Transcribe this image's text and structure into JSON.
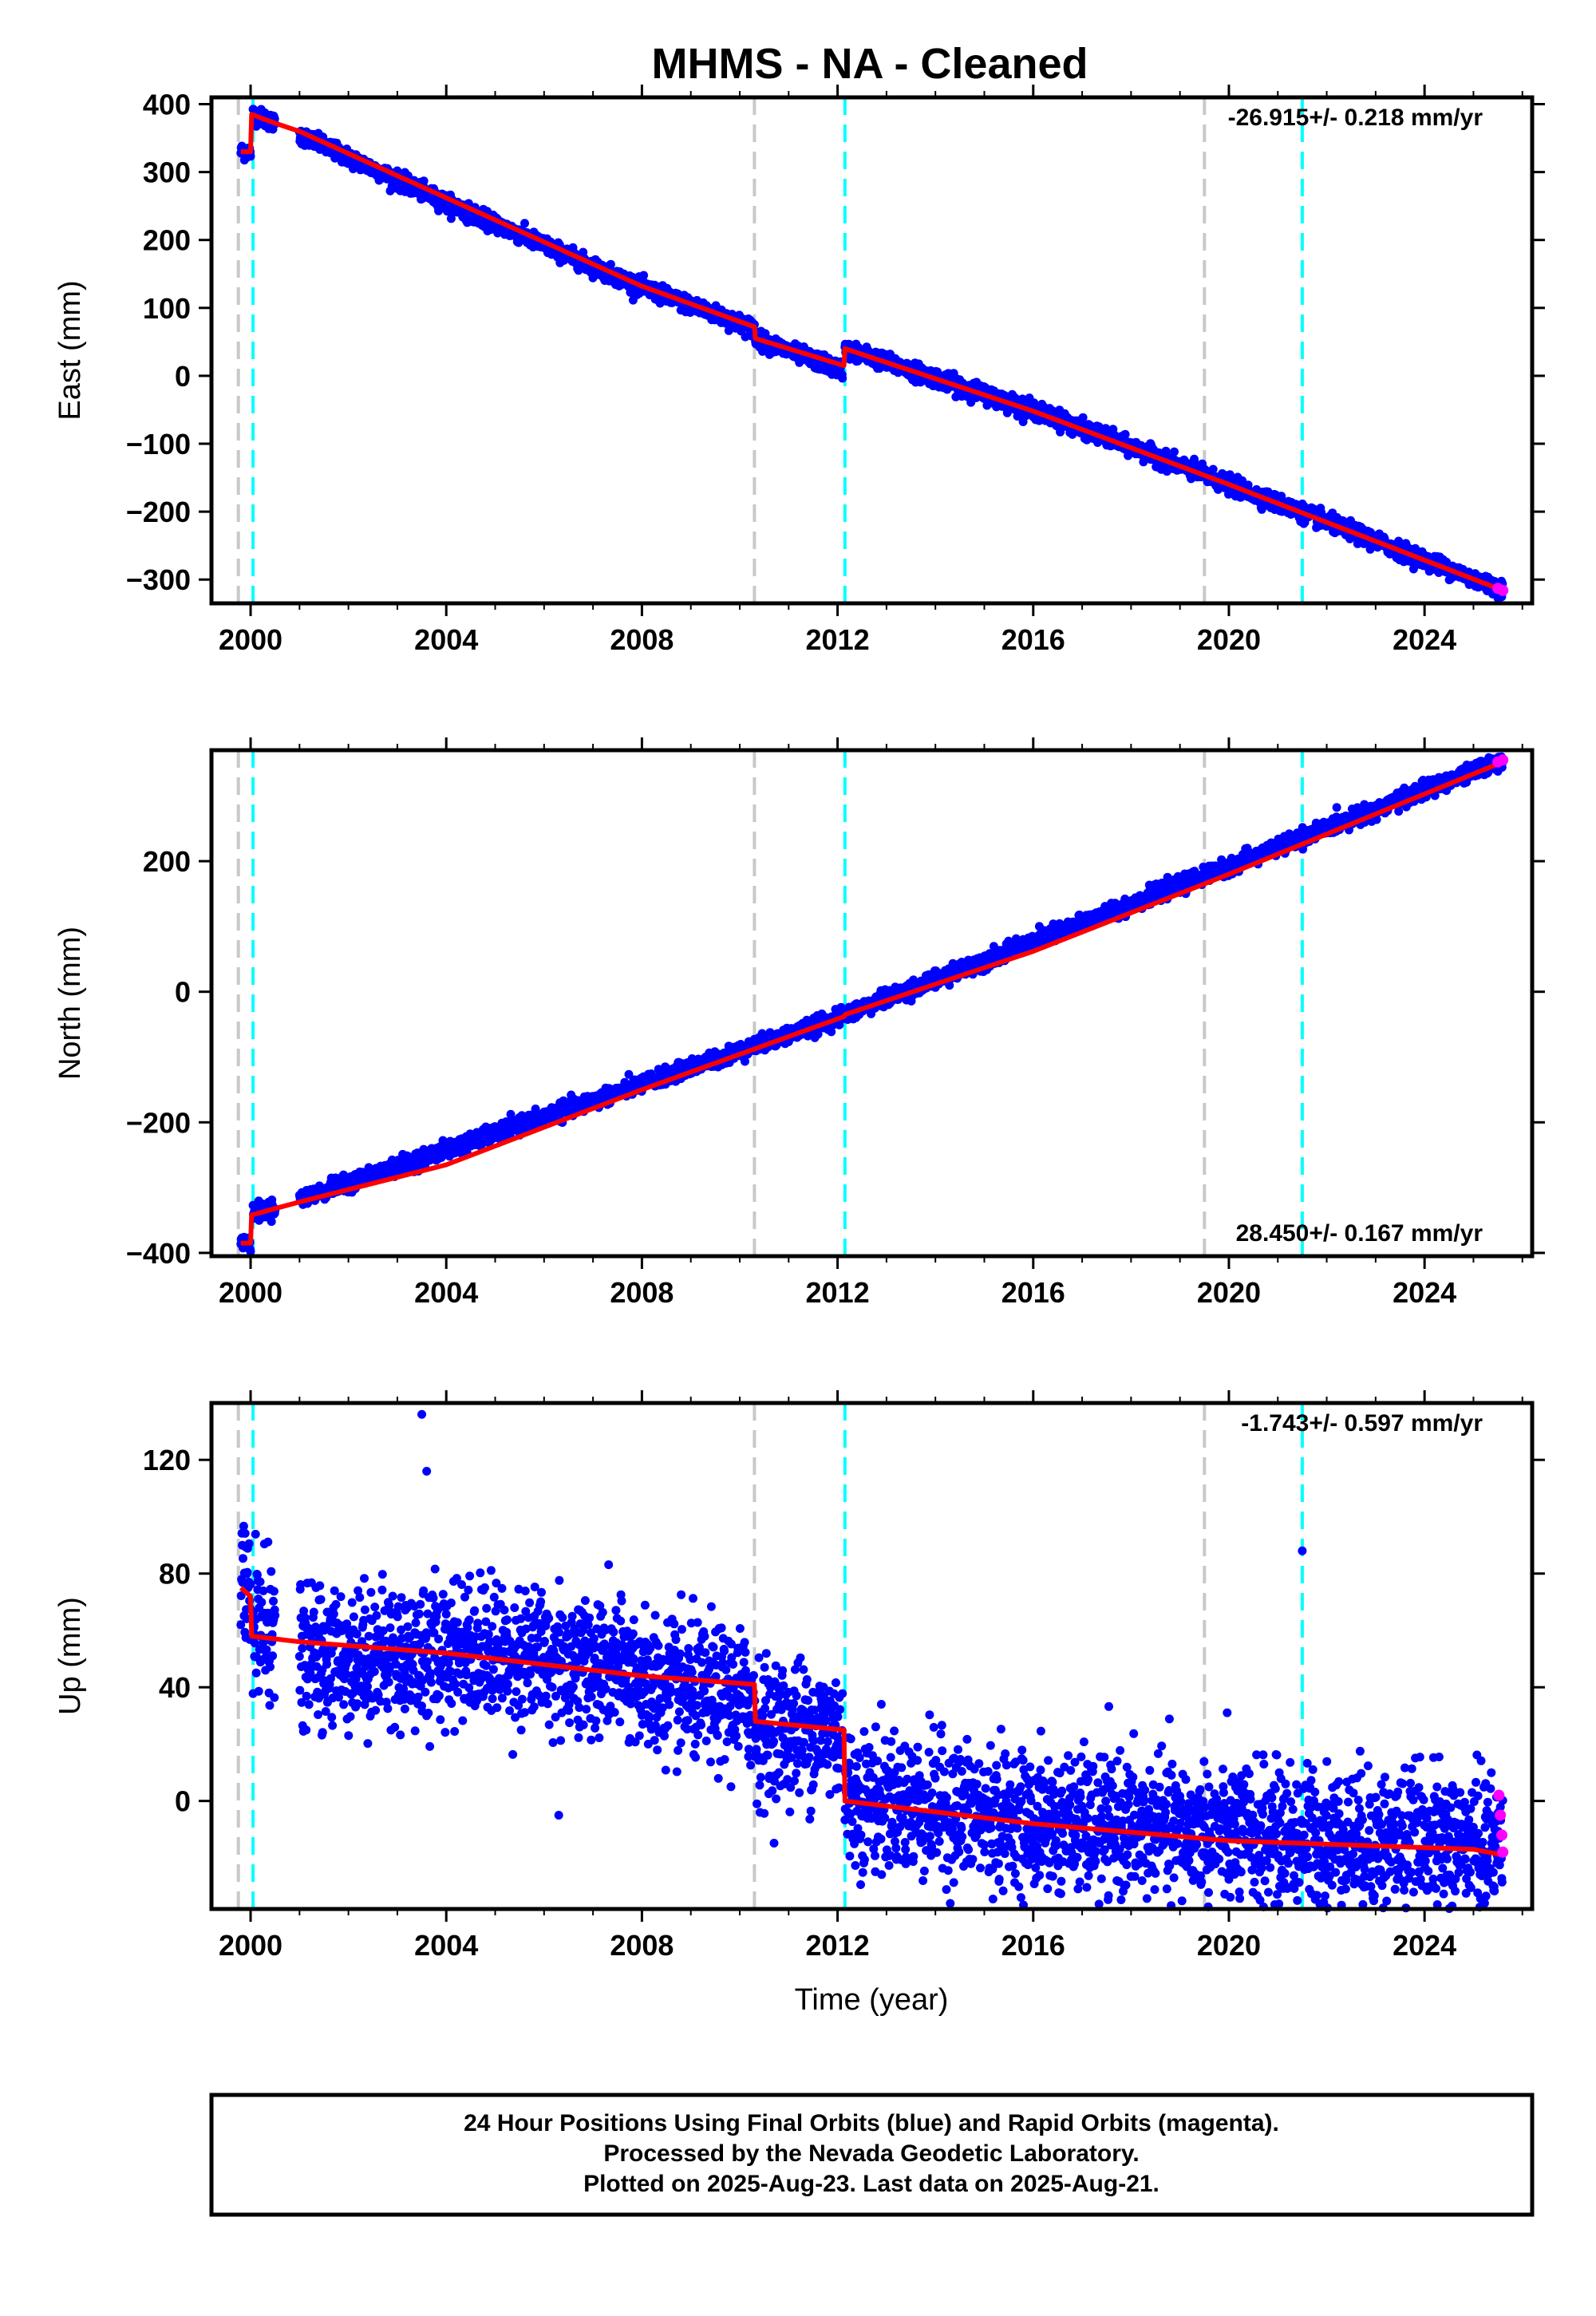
{
  "title": "MHMS  - NA - Cleaned",
  "xlabel": "Time (year)",
  "colors": {
    "final_points": "#0000ff",
    "rapid_points": "#ff00ff",
    "model": "#ff0000",
    "antenna_change": "#c8c8c8",
    "earthquake": "#00ffff",
    "frame": "#000000"
  },
  "footer": {
    "line1": "24 Hour Positions Using Final Orbits (blue) and Rapid Orbits (magenta).",
    "line2": "Processed by the Nevada Geodetic Laboratory.",
    "line3": "Plotted on 2025-Aug-23. Last data on 2025-Aug-21."
  },
  "chart_data": [
    {
      "type": "scatter",
      "panel": "east",
      "ylabel": "East (mm)",
      "rate_label": "-26.915+/- 0.218 mm/yr",
      "rate_position": "top-right",
      "xlim": [
        1999.2,
        2026.2
      ],
      "ylim": [
        -335,
        410
      ],
      "xticks": [
        2000,
        2004,
        2008,
        2012,
        2016,
        2020,
        2024
      ],
      "yticks": [
        -300,
        -200,
        -100,
        0,
        100,
        200,
        300,
        400
      ],
      "yticklabels": [
        "−300",
        "−200",
        "−100",
        "0",
        "100",
        "200",
        "300",
        "400"
      ],
      "vlines_gray": [
        1999.75,
        2010.3,
        2019.5
      ],
      "vlines_cyan": [
        2000.05,
        2012.15,
        2021.5
      ],
      "noise_mm": 6,
      "data_segments": [
        {
          "x": [
            1999.8,
            2000.0
          ],
          "y": [
            330,
            330
          ]
        },
        {
          "x": [
            2000.05,
            2000.5
          ],
          "y": [
            385,
            372
          ]
        },
        {
          "x": [
            2001.0,
            2004.0
          ],
          "y": [
            355,
            255
          ]
        },
        {
          "x": [
            2004.0,
            2008.0
          ],
          "y": [
            255,
            130
          ]
        },
        {
          "x": [
            2008.0,
            2010.3
          ],
          "y": [
            130,
            70
          ]
        },
        {
          "x": [
            2010.3,
            2012.1
          ],
          "y": [
            55,
            8
          ]
        },
        {
          "x": [
            2012.15,
            2016.0
          ],
          "y": [
            40,
            -50
          ]
        },
        {
          "x": [
            2016.0,
            2020.0
          ],
          "y": [
            -50,
            -160
          ]
        },
        {
          "x": [
            2020.0,
            2025.6
          ],
          "y": [
            -160,
            -315
          ]
        }
      ],
      "model_line": {
        "x": [
          1999.8,
          2000.0,
          2000.02,
          2000.5,
          2001.0,
          2004.0,
          2008.0,
          2010.3,
          2010.32,
          2012.13,
          2012.15,
          2016.0,
          2020.0,
          2025.6
        ],
        "y": [
          330,
          330,
          385,
          372,
          360,
          262,
          132,
          72,
          55,
          15,
          40,
          -52,
          -160,
          -316
        ]
      },
      "rapid_points": {
        "x": [
          2025.5,
          2025.6
        ],
        "y": [
          -313,
          -316
        ]
      }
    },
    {
      "type": "scatter",
      "panel": "north",
      "ylabel": "North (mm)",
      "rate_label": "28.450+/- 0.167 mm/yr",
      "rate_position": "bottom-right",
      "xlim": [
        1999.2,
        2026.2
      ],
      "ylim": [
        -405,
        370
      ],
      "xticks": [
        2000,
        2004,
        2008,
        2012,
        2016,
        2020,
        2024
      ],
      "yticks": [
        -400,
        -200,
        0,
        200
      ],
      "yticklabels": [
        "−400",
        "−200",
        "0",
        "200"
      ],
      "vlines_gray": [
        1999.75,
        2010.3,
        2019.5
      ],
      "vlines_cyan": [
        2000.05,
        2012.15,
        2021.5
      ],
      "noise_mm": 6,
      "data_segments": [
        {
          "x": [
            1999.8,
            2000.0
          ],
          "y": [
            -385,
            -385
          ]
        },
        {
          "x": [
            2000.05,
            2000.5
          ],
          "y": [
            -340,
            -330
          ]
        },
        {
          "x": [
            2001.0,
            2012.1
          ],
          "y": [
            -318,
            -38
          ]
        },
        {
          "x": [
            2012.15,
            2025.6
          ],
          "y": [
            -35,
            355
          ]
        }
      ],
      "model_line": {
        "x": [
          1999.8,
          2000.0,
          2000.02,
          2000.5,
          2001.0,
          2004.0,
          2008.0,
          2012.13,
          2012.15,
          2016.0,
          2020.0,
          2025.6
        ],
        "y": [
          -385,
          -385,
          -342,
          -332,
          -322,
          -265,
          -150,
          -38,
          -35,
          62,
          180,
          352
        ]
      },
      "rapid_points": {
        "x": [
          2025.5,
          2025.6
        ],
        "y": [
          352,
          355
        ]
      }
    },
    {
      "type": "scatter",
      "panel": "up",
      "ylabel": "Up (mm)",
      "rate_label": "-1.743+/- 0.597 mm/yr",
      "rate_position": "top-right",
      "xlim": [
        1999.2,
        2026.2
      ],
      "ylim": [
        -38,
        140
      ],
      "xticks": [
        2000,
        2004,
        2008,
        2012,
        2016,
        2020,
        2024
      ],
      "yticks": [
        0,
        40,
        80,
        120
      ],
      "yticklabels": [
        "0",
        "40",
        "80",
        "120"
      ],
      "vlines_gray": [
        1999.75,
        2010.3,
        2019.5
      ],
      "vlines_cyan": [
        2000.05,
        2012.15,
        2021.5
      ],
      "noise_mm": 12,
      "data_segments": [
        {
          "x": [
            1999.8,
            2000.0
          ],
          "y": [
            75,
            72
          ]
        },
        {
          "x": [
            2000.05,
            2000.5
          ],
          "y": [
            65,
            58
          ]
        },
        {
          "x": [
            2001.0,
            2004.0
          ],
          "y": [
            50,
            52
          ]
        },
        {
          "x": [
            2004.0,
            2008.0
          ],
          "y": [
            55,
            45
          ]
        },
        {
          "x": [
            2008.0,
            2010.3
          ],
          "y": [
            40,
            35
          ]
        },
        {
          "x": [
            2010.3,
            2012.1
          ],
          "y": [
            25,
            25
          ]
        },
        {
          "x": [
            2012.15,
            2016.0
          ],
          "y": [
            2,
            -8
          ]
        },
        {
          "x": [
            2016.0,
            2020.0
          ],
          "y": [
            -8,
            -12
          ]
        },
        {
          "x": [
            2020.0,
            2025.6
          ],
          "y": [
            -12,
            -15
          ]
        }
      ],
      "model_line": {
        "x": [
          1999.8,
          2000.0,
          2000.02,
          2001.0,
          2004.0,
          2008.0,
          2010.3,
          2010.32,
          2012.13,
          2012.15,
          2016.0,
          2020.0,
          2025.0,
          2025.6
        ],
        "y": [
          75,
          72,
          58,
          56,
          52,
          44,
          41,
          28,
          25,
          0,
          -8,
          -14,
          -17,
          -19
        ]
      },
      "rapid_points": {
        "x": [
          2025.52,
          2025.55,
          2025.58,
          2025.6
        ],
        "y": [
          2,
          -5,
          -12,
          -18
        ]
      },
      "outliers": {
        "x": [
          2003.5,
          2003.6,
          2021.5,
          2006.3,
          2021.4
        ],
        "y": [
          136,
          116,
          88,
          -5,
          -35
        ]
      }
    }
  ]
}
